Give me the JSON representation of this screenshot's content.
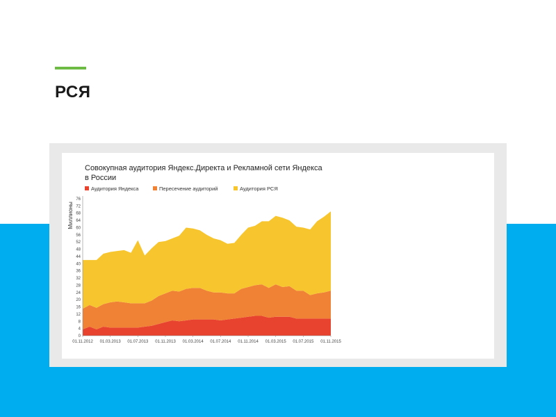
{
  "slide": {
    "title": "РСЯ",
    "accent_color": "#6dbb45",
    "band_color": "#00aeef"
  },
  "chart_data": {
    "type": "area",
    "stacked": true,
    "title_lines": [
      "Совокупная аудитория Яндекс.Директа и Рекламной сети Яндекса",
      "в России"
    ],
    "ylabel": "Миллионы",
    "xlabel": "",
    "ylim": [
      0,
      76
    ],
    "yticks": [
      0,
      4,
      8,
      12,
      16,
      20,
      24,
      28,
      32,
      36,
      40,
      44,
      48,
      52,
      56,
      60,
      64,
      68,
      72,
      76
    ],
    "xtick_labels": [
      "01.11.2012",
      "01.03.2013",
      "01.07.2013",
      "01.11.2013",
      "01.03.2014",
      "01.07.2014",
      "01.11.2014",
      "01.03.2015",
      "01.07.2015",
      "01.11.2015"
    ],
    "grid": false,
    "legend_position": "top-left",
    "x": [
      "01.11.2012",
      "12.2012",
      "01.2013",
      "02.2013",
      "01.03.2013",
      "04.2013",
      "05.2013",
      "06.2013",
      "01.07.2013",
      "08.2013",
      "09.2013",
      "10.2013",
      "01.11.2013",
      "12.2013",
      "01.2014",
      "02.2014",
      "01.03.2014",
      "04.2014",
      "05.2014",
      "06.2014",
      "01.07.2014",
      "08.2014",
      "09.2014",
      "10.2014",
      "01.11.2014",
      "12.2014",
      "01.2015",
      "02.2015",
      "01.03.2015",
      "04.2015",
      "05.2015",
      "06.2015",
      "01.07.2015",
      "08.2015",
      "09.2015",
      "10.2015",
      "01.11.2015"
    ],
    "series": [
      {
        "name": "Аудитория Яндекса",
        "color": "#e8432e",
        "values": [
          3.5,
          5,
          3.5,
          5,
          4.5,
          4.5,
          4.5,
          4.5,
          4.5,
          5,
          5.5,
          6.5,
          7.5,
          8.5,
          8,
          8.5,
          9,
          9,
          9,
          9,
          8.5,
          9,
          9.5,
          10,
          10.5,
          11,
          11,
          10,
          10.5,
          10.5,
          10.5,
          9.5,
          9.5,
          9.5,
          9.5,
          9.5,
          9.5
        ]
      },
      {
        "name": "Пересечение аудиторий",
        "color": "#f08236",
        "values": [
          11.5,
          12,
          12,
          12.5,
          14,
          14.5,
          14,
          13.5,
          13.5,
          13,
          14,
          15.5,
          16,
          16.5,
          16.5,
          17.5,
          17.5,
          17.5,
          16,
          15,
          15.5,
          14.5,
          14,
          16,
          16.5,
          17,
          17.5,
          16.5,
          18,
          16.5,
          17,
          15.5,
          15.5,
          13,
          14,
          14.5,
          15.5
        ]
      },
      {
        "name": "Аудитория РСЯ",
        "color": "#f7c62f",
        "values": [
          27,
          25,
          26.5,
          28,
          28,
          28,
          29,
          28,
          35,
          26.5,
          29,
          30,
          29,
          29,
          31,
          34,
          33,
          32,
          31,
          30,
          29,
          27.5,
          28,
          30,
          33,
          33,
          35,
          37,
          38,
          38.5,
          36.5,
          35.5,
          35,
          36.5,
          40,
          42,
          44
        ]
      }
    ]
  }
}
